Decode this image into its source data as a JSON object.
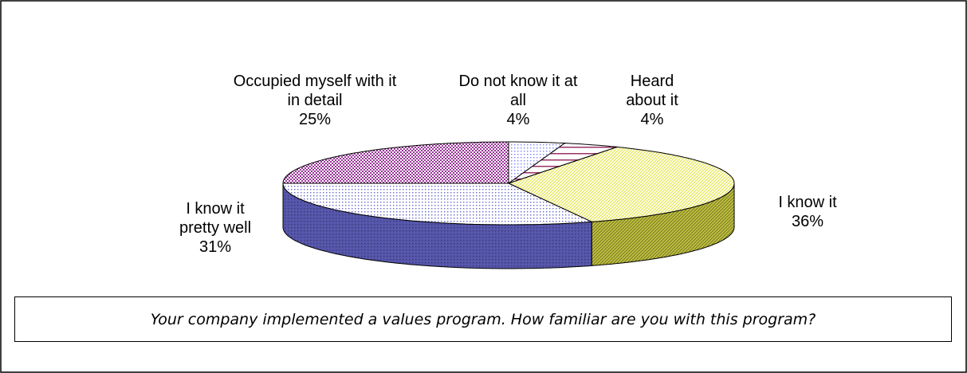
{
  "chart_data": {
    "type": "pie",
    "title": "Your company implemented a values program. How familiar are you with this program?",
    "categories": [
      "Do not know it at all",
      "Heard about it",
      "I know it",
      "I know it pretty well",
      "Occupied myself with it in detail"
    ],
    "values": [
      4,
      4,
      36,
      31,
      25
    ],
    "value_labels": [
      "4%",
      "4%",
      "36%",
      "31%",
      "25%"
    ],
    "colors": [
      "#8080ff",
      "#993366",
      "#e6e64d",
      "#6666cc",
      "#993399"
    ]
  }
}
